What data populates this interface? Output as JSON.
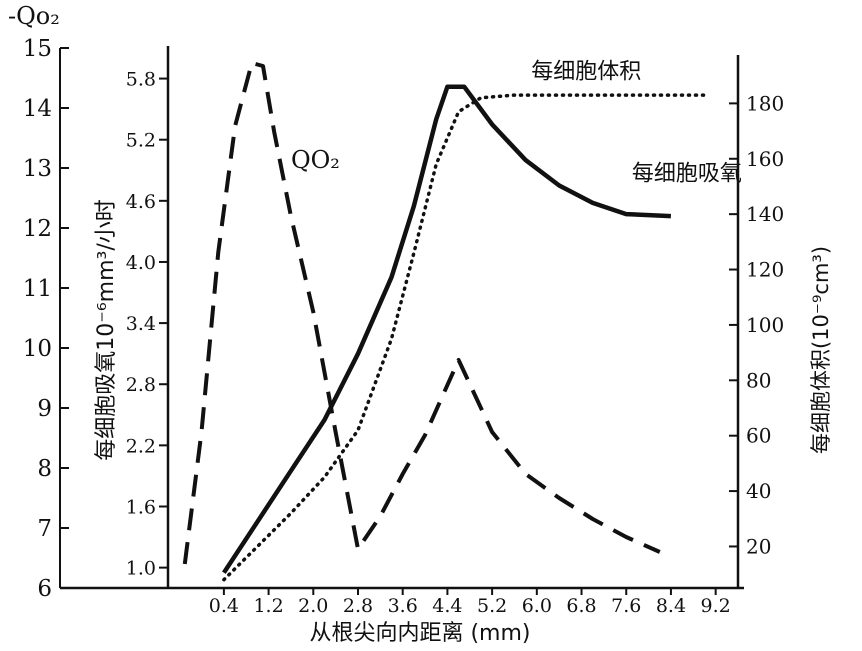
{
  "chart_data": {
    "type": "line",
    "far_left_axis_label": "-Qo₂",
    "left_axis_label": "每细胞吸氧10⁻⁶mm³/小时",
    "right_axis_label": "每细胞体积(10⁻⁹cm³)",
    "xlabel": "从根尖向内距离 (mm)",
    "x_ticks": [
      "0.4",
      "1.2",
      "2.0",
      "2.8",
      "3.6",
      "4.4",
      "5.2",
      "6.0",
      "6.8",
      "7.6",
      "8.4",
      "9.2"
    ],
    "far_left_ticks": [
      "6",
      "7",
      "8",
      "9",
      "10",
      "11",
      "12",
      "13",
      "14",
      "15"
    ],
    "left_ticks": [
      "1.0",
      "1.6",
      "2.2",
      "2.8",
      "3.4",
      "4.0",
      "4.6",
      "5.2",
      "5.8"
    ],
    "right_ticks": [
      "20",
      "40",
      "60",
      "80",
      "100",
      "120",
      "140",
      "160",
      "180"
    ],
    "xlim": [
      -0.6,
      9.6
    ],
    "far_left_ylim": [
      6,
      15
    ],
    "left_ylim": [
      0.8,
      6.1
    ],
    "right_ylim": [
      5,
      200
    ],
    "series": [
      {
        "name": "QO₂",
        "axis": "far_left",
        "style": "dashed",
        "x": [
          -0.3,
          0.0,
          0.3,
          0.6,
          0.9,
          1.1,
          1.3,
          1.6,
          2.0,
          2.4,
          2.8,
          3.2,
          3.6,
          4.0,
          4.6,
          5.2,
          5.8,
          6.4,
          7.0,
          7.6,
          8.2
        ],
        "y": [
          6.4,
          8.6,
          11.6,
          13.7,
          14.75,
          14.7,
          13.6,
          12.2,
          10.6,
          8.6,
          6.65,
          7.2,
          7.9,
          8.55,
          9.8,
          8.6,
          7.9,
          7.5,
          7.15,
          6.85,
          6.6
        ]
      },
      {
        "name": "每细胞体积",
        "axis": "right",
        "style": "dotted",
        "x": [
          0.4,
          1.0,
          1.6,
          2.2,
          2.8,
          3.4,
          3.8,
          4.2,
          4.6,
          5.0,
          5.6,
          6.4,
          7.2,
          8.0,
          8.8,
          9.0
        ],
        "y": [
          8,
          20,
          32,
          45,
          62,
          95,
          126,
          158,
          177,
          182,
          183,
          183,
          183,
          183,
          183,
          183
        ]
      },
      {
        "name": "每细胞吸氧",
        "axis": "left",
        "style": "solid",
        "x": [
          0.4,
          1.0,
          1.6,
          2.2,
          2.8,
          3.4,
          3.8,
          4.2,
          4.4,
          4.7,
          5.2,
          5.8,
          6.4,
          7.0,
          7.6,
          8.4
        ],
        "y": [
          0.95,
          1.45,
          1.95,
          2.45,
          3.1,
          3.85,
          4.55,
          5.4,
          5.72,
          5.72,
          5.35,
          5.0,
          4.75,
          4.58,
          4.47,
          4.45
        ]
      }
    ],
    "annotations": [
      {
        "text": "QO₂",
        "x": 1.6,
        "y_far_left": 13.0
      },
      {
        "text": "每细胞体积",
        "x": 5.9,
        "y_right": 189
      },
      {
        "text": "每细胞吸氧",
        "x": 7.7,
        "y_left": 4.8
      }
    ]
  }
}
